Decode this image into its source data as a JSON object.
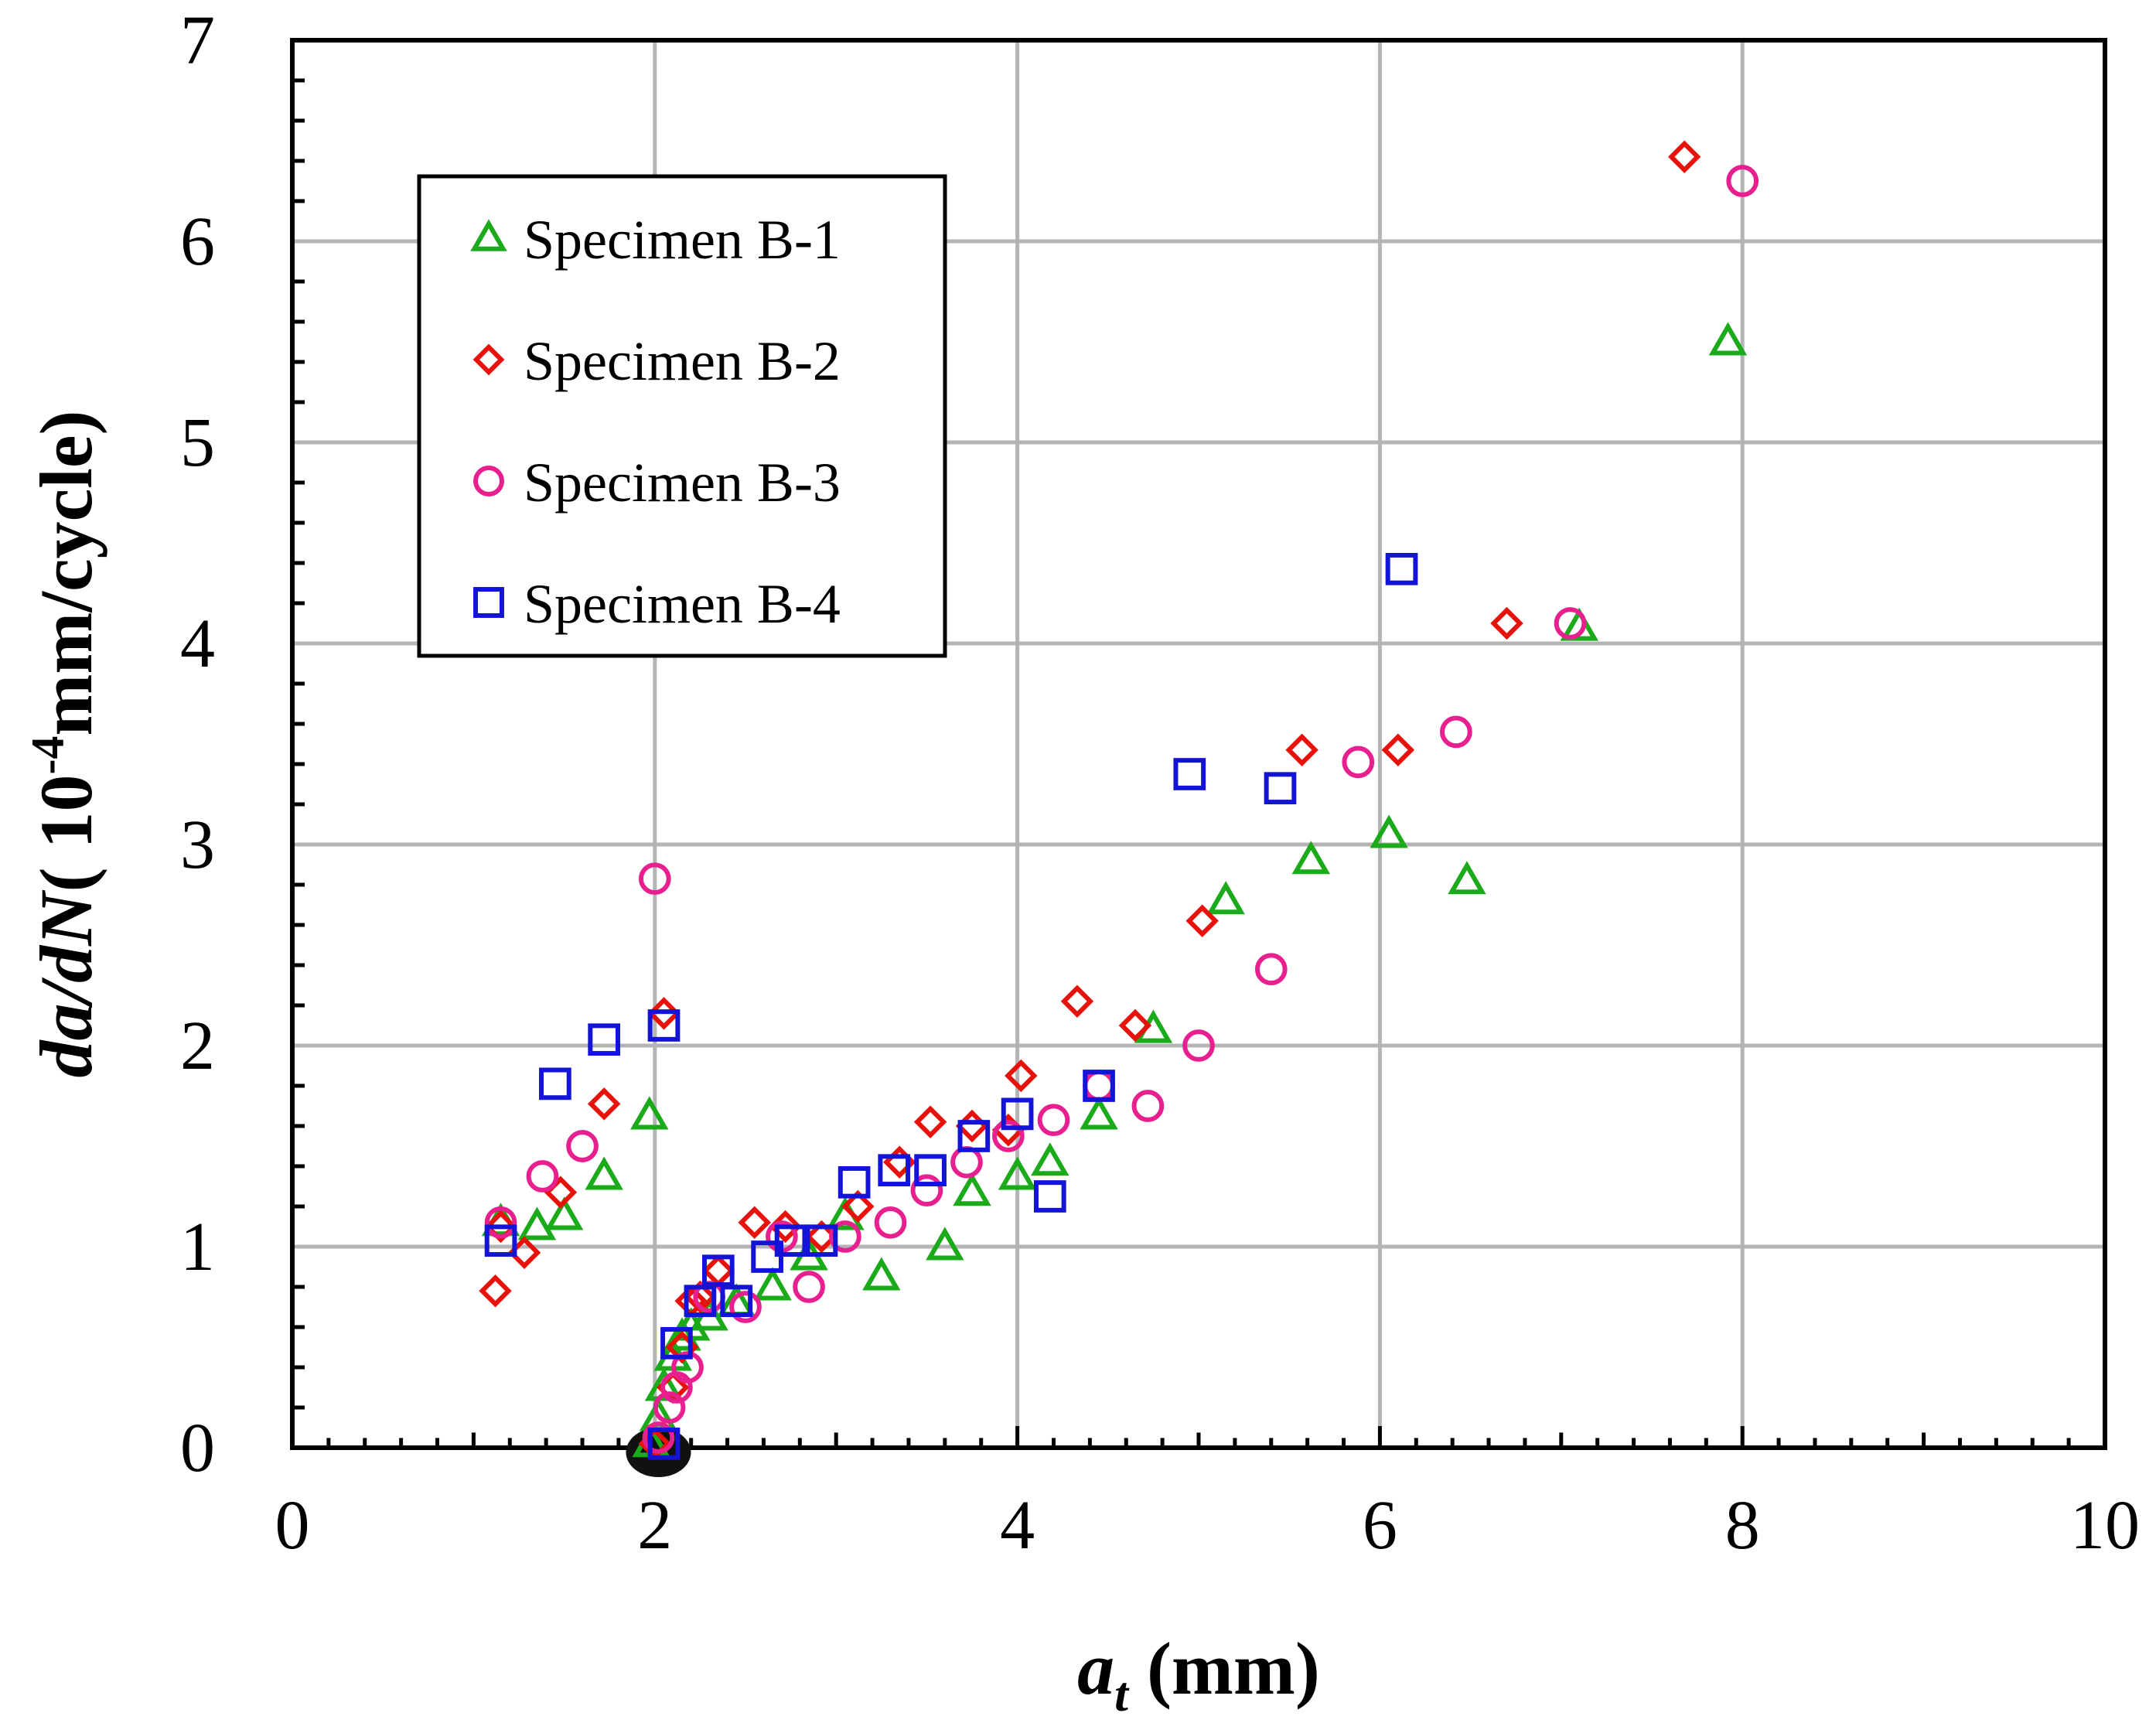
{
  "chart_data": {
    "type": "scatter",
    "title": "",
    "xlabel_main": "a",
    "xlabel_sub": "t",
    "xlabel_unit": " (mm)",
    "ylabel_main": "da/dN",
    "ylabel_pre": "( 10",
    "ylabel_sup": "-4",
    "ylabel_post": "mm/cycle)",
    "xlim": [
      0,
      10
    ],
    "ylim": [
      0,
      7
    ],
    "xticks": [
      0,
      2,
      4,
      6,
      8,
      10
    ],
    "xtick_labels": [
      "0",
      "2",
      "4",
      "6",
      "8",
      "10"
    ],
    "yticks": [
      0,
      1,
      2,
      3,
      4,
      5,
      6,
      7
    ],
    "ytick_labels": [
      "0",
      "1",
      "2",
      "3",
      "4",
      "5",
      "6",
      "7"
    ],
    "grid": true,
    "legend_position": "top-left",
    "series": [
      {
        "name": "Specimen B-1",
        "marker": "triangle",
        "color": "#1aaa1a",
        "x": [
          1.15,
          1.35,
          1.5,
          1.72,
          1.97,
          1.98,
          2.02,
          2.05,
          2.1,
          2.15,
          2.2,
          2.3,
          2.45,
          2.65,
          2.85,
          3.05,
          3.25,
          3.6,
          3.75,
          4.0,
          4.18,
          4.45,
          4.75,
          5.15,
          5.62,
          6.05,
          6.48,
          7.1,
          7.92
        ],
        "y": [
          1.12,
          1.1,
          1.15,
          1.35,
          1.65,
          0.02,
          0.15,
          0.3,
          0.45,
          0.55,
          0.6,
          0.65,
          0.72,
          0.8,
          0.95,
          1.15,
          0.85,
          1.0,
          1.27,
          1.35,
          1.42,
          1.65,
          2.08,
          2.72,
          2.92,
          3.05,
          2.82,
          4.08,
          5.5
        ]
      },
      {
        "name": "Specimen B-2",
        "marker": "diamond",
        "color": "#e8120c",
        "x": [
          1.12,
          1.15,
          1.28,
          1.48,
          1.72,
          2.0,
          2.05,
          2.1,
          2.15,
          2.2,
          2.25,
          2.35,
          2.55,
          2.72,
          2.92,
          3.12,
          3.35,
          3.52,
          3.75,
          3.95,
          4.02,
          4.33,
          4.65,
          5.02,
          5.57,
          6.1,
          6.7,
          7.68
        ],
        "y": [
          0.78,
          1.1,
          0.97,
          1.27,
          1.71,
          0.02,
          2.16,
          0.3,
          0.5,
          0.73,
          0.75,
          0.88,
          1.12,
          1.1,
          1.05,
          1.2,
          1.42,
          1.62,
          1.6,
          1.58,
          1.85,
          2.22,
          2.1,
          2.62,
          3.47,
          3.47,
          4.1,
          6.42
        ]
      },
      {
        "name": "Specimen B-3",
        "marker": "circle",
        "color": "#e8208f",
        "x": [
          1.15,
          1.38,
          1.6,
          2.0,
          2.02,
          2.08,
          2.12,
          2.18,
          2.3,
          2.5,
          2.7,
          2.85,
          3.05,
          3.3,
          3.5,
          3.72,
          3.95,
          4.2,
          4.45,
          4.72,
          5.0,
          5.4,
          5.88,
          6.42,
          7.05,
          8.0
        ],
        "y": [
          1.12,
          1.35,
          1.5,
          2.83,
          0.05,
          0.2,
          0.3,
          0.4,
          0.75,
          0.7,
          1.05,
          0.8,
          1.05,
          1.12,
          1.28,
          1.42,
          1.55,
          1.63,
          1.8,
          1.7,
          2.0,
          2.38,
          3.41,
          3.56,
          4.1,
          6.3
        ]
      },
      {
        "name": "Specimen B-4",
        "marker": "square",
        "color": "#1414d8",
        "x": [
          1.15,
          1.45,
          1.72,
          2.05,
          2.05,
          2.12,
          2.25,
          2.35,
          2.45,
          2.62,
          2.75,
          2.92,
          3.1,
          3.32,
          3.52,
          3.76,
          4.0,
          4.18,
          4.45,
          4.95,
          5.45,
          6.12
        ],
        "y": [
          1.03,
          1.81,
          2.03,
          2.1,
          0.02,
          0.52,
          0.73,
          0.88,
          0.73,
          0.95,
          1.03,
          1.03,
          1.32,
          1.38,
          1.38,
          1.55,
          1.66,
          1.25,
          1.8,
          3.35,
          3.28,
          4.37
        ]
      }
    ]
  }
}
